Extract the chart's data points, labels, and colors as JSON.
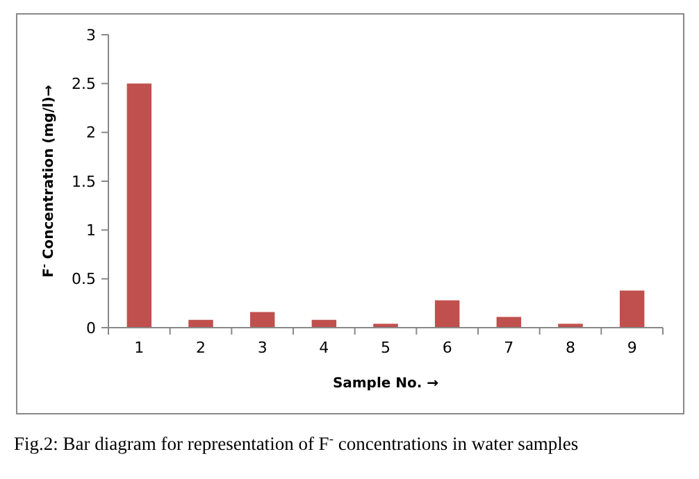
{
  "chart_data": {
    "type": "bar",
    "ylabel": "F$^{-}$ Concentration  (mg/l)→",
    "xlabel": "Sample No. →",
    "annotations": [
      "Fig.2: Bar diagram for representation of F$^{-}$ concentrations in water samples"
    ],
    "categories": [
      "1",
      "2",
      "3",
      "4",
      "5",
      "6",
      "7",
      "8",
      "9"
    ],
    "values": [
      2.5,
      0.08,
      0.16,
      0.08,
      0.04,
      0.28,
      0.11,
      0.04,
      0.38
    ],
    "color": "#c0504d",
    "ylim": [
      0,
      3
    ],
    "yticks": [
      0,
      0.5,
      1,
      1.5,
      2,
      2.5,
      3
    ],
    "grid": false
  }
}
